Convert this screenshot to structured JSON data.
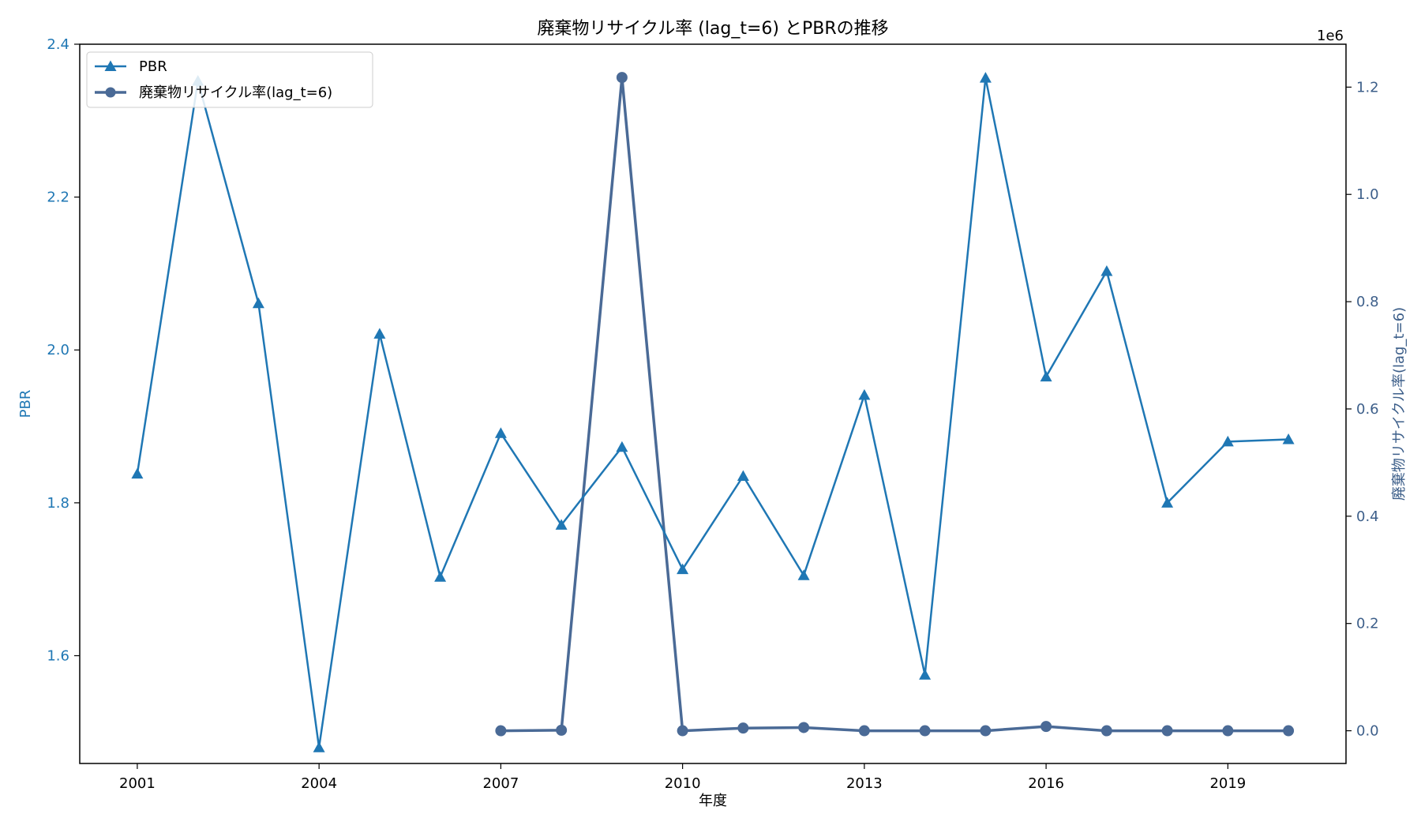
{
  "chart_data": {
    "type": "line",
    "title": "廃棄物リサイクル率 (lag_t=6) とPBRの推移",
    "xlabel": "年度",
    "ylabel_left": "PBR",
    "ylabel_right": "廃棄物リサイクル率(lag_t=6)",
    "right_offset_text": "1e6",
    "xlim": [
      2000.05,
      2020.95
    ],
    "ylim_left": [
      1.459,
      2.4
    ],
    "ylim_right": [
      -61000,
      1280000
    ],
    "x_ticks": [
      2001,
      2004,
      2007,
      2010,
      2013,
      2016,
      2019
    ],
    "x_tick_labels": [
      "2001",
      "2004",
      "2007",
      "2010",
      "2013",
      "2016",
      "2019"
    ],
    "y_left_ticks": [
      1.6,
      1.8,
      2.0,
      2.2,
      2.4
    ],
    "y_left_tick_labels": [
      "1.6",
      "1.8",
      "2.0",
      "2.2",
      "2.4"
    ],
    "y_right_ticks": [
      0,
      200000,
      400000,
      600000,
      800000,
      1000000,
      1200000
    ],
    "y_right_tick_labels": [
      "0.0",
      "0.2",
      "0.4",
      "0.6",
      "0.8",
      "1.0",
      "1.2"
    ],
    "legend_position": "upper-left",
    "colors": {
      "pbr": "#1f77b4",
      "recycle": "#4a6a96",
      "left_axis": "#1f77b4",
      "right_axis": "#3d5f8a"
    },
    "series": [
      {
        "name": "PBR",
        "axis": "left",
        "marker": "triangle",
        "x": [
          2001,
          2002,
          2003,
          2004,
          2005,
          2006,
          2007,
          2008,
          2009,
          2010,
          2011,
          2012,
          2013,
          2014,
          2015,
          2016,
          2017,
          2018,
          2019,
          2020
        ],
        "values": [
          1.838,
          2.352,
          2.061,
          1.48,
          2.021,
          1.703,
          1.891,
          1.771,
          1.873,
          1.713,
          1.835,
          1.705,
          1.941,
          1.575,
          2.356,
          1.965,
          2.103,
          1.8,
          1.88,
          1.883
        ]
      },
      {
        "name": "廃棄物リサイクル率(lag_t=6)",
        "axis": "right",
        "marker": "circle",
        "x": [
          2007,
          2008,
          2009,
          2010,
          2011,
          2012,
          2013,
          2014,
          2015,
          2016,
          2017,
          2018,
          2019,
          2020
        ],
        "values": [
          0,
          1000,
          1218000,
          0,
          5000,
          6000,
          0,
          0,
          0,
          8000,
          0,
          0,
          0,
          0
        ]
      }
    ]
  }
}
